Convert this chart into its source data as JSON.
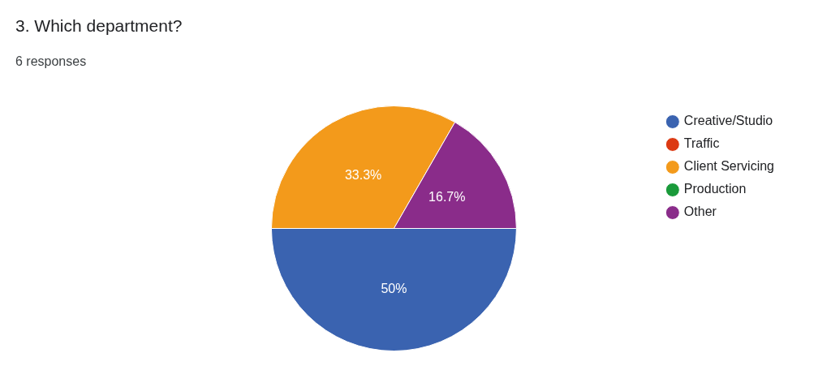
{
  "chart_data": {
    "type": "pie",
    "title": "3. Which department?",
    "subtitle": "6 responses",
    "categories": [
      "Creative/Studio",
      "Traffic",
      "Client Servicing",
      "Production",
      "Other"
    ],
    "values": [
      50,
      0,
      33.3,
      0,
      16.7
    ],
    "colors": [
      "#3a63b0",
      "#dc3912",
      "#f39a1b",
      "#1a9a3a",
      "#8a2c8a"
    ],
    "value_labels": [
      "50%",
      null,
      "33.3%",
      null,
      "16.7%"
    ],
    "legend": "right"
  }
}
